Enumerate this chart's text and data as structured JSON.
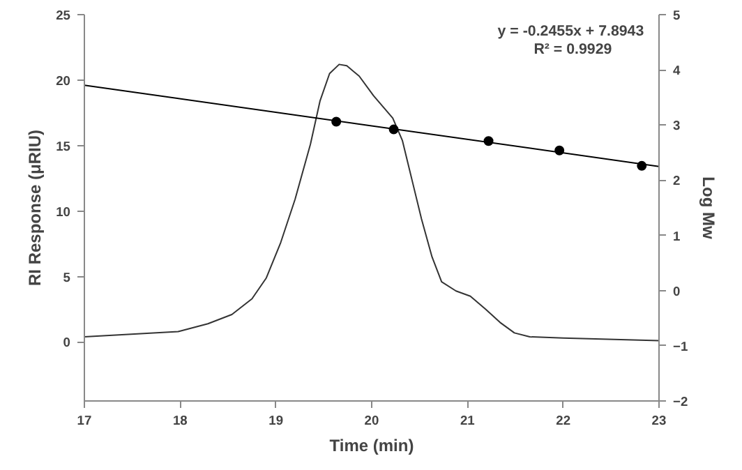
{
  "chart_data": {
    "type": "line",
    "xlabel": "Time (min)",
    "ylabel": "RI Response (μRIU)",
    "y2label": "Log Mw",
    "xlim": [
      17,
      23
    ],
    "xticks": [
      17,
      18,
      19,
      20,
      21,
      22,
      23
    ],
    "ylim": [
      -4.5,
      25
    ],
    "yticks": [
      0,
      5,
      10,
      15,
      20,
      25
    ],
    "y2lim": [
      -2,
      5
    ],
    "y2ticks": [
      -2,
      -1,
      0,
      1,
      2,
      3,
      4,
      5
    ],
    "grid": false,
    "annotations": [
      "y  = -0.2455x + 7.8943",
      "R² = 0.9929"
    ],
    "series": [
      {
        "color": "#333333",
        "x": [
          17,
          17.98,
          18.29,
          18.54,
          18.75,
          18.9,
          19.05,
          19.2,
          19.36,
          19.46,
          19.56,
          19.66,
          19.74,
          19.87,
          20.02,
          20.22,
          20.32,
          20.42,
          20.52,
          20.63,
          20.73,
          20.88,
          21.03,
          21.19,
          21.34,
          21.49,
          21.65,
          22.0,
          23
        ],
        "values": [
          0.4,
          0.8,
          1.4,
          2.1,
          3.3,
          4.9,
          7.6,
          10.9,
          15.1,
          18.4,
          20.5,
          21.2,
          21.1,
          20.3,
          18.8,
          17.1,
          15.4,
          12.4,
          9.4,
          6.5,
          4.6,
          3.9,
          3.5,
          2.5,
          1.5,
          0.7,
          0.4,
          0.3,
          0.1
        ]
      },
      {
        "type": "line",
        "axis": "y2",
        "color": "#000000",
        "x": [
          17,
          23
        ],
        "values": [
          3.72,
          2.25
        ]
      },
      {
        "type": "scatter",
        "axis": "y2",
        "color": "#000000",
        "marker": "circle",
        "x": [
          19.63,
          20.23,
          21.22,
          21.96,
          22.82
        ],
        "values": [
          3.06,
          2.92,
          2.71,
          2.54,
          2.26
        ]
      }
    ]
  }
}
